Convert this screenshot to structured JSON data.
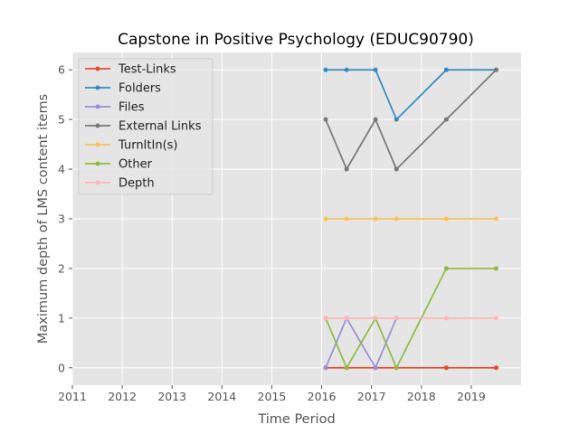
{
  "chart_data": {
    "type": "line",
    "title": "Capstone in Positive Psychology (EDUC90790)",
    "xlabel": "Time Period",
    "ylabel": "Maximum depth of LMS content items",
    "xlim": [
      2011,
      2020
    ],
    "ylim": [
      -0.35,
      6.35
    ],
    "xticks": [
      "2011",
      "2012",
      "2013",
      "2014",
      "2015",
      "2016",
      "2017",
      "2018",
      "2019"
    ],
    "yticks": [
      "0",
      "1",
      "2",
      "3",
      "4",
      "5",
      "6"
    ],
    "grid": true,
    "legend_position": "upper-left",
    "x": [
      2016.08,
      2016.5,
      2017.08,
      2017.5,
      2018.5,
      2019.5
    ],
    "series": [
      {
        "name": "Test-Links",
        "color": "#E24A33",
        "values": [
          0,
          0,
          0,
          0,
          0,
          0
        ]
      },
      {
        "name": "Folders",
        "color": "#348ABD",
        "values": [
          6,
          6,
          6,
          5,
          6,
          6
        ]
      },
      {
        "name": "Files",
        "color": "#988ED5",
        "values": [
          0,
          1,
          0,
          1,
          null,
          null
        ]
      },
      {
        "name": "External Links",
        "color": "#777777",
        "values": [
          5,
          4,
          5,
          4,
          5,
          6
        ]
      },
      {
        "name": "TurnItIn(s)",
        "color": "#FBC15E",
        "values": [
          3,
          3,
          3,
          3,
          3,
          3
        ]
      },
      {
        "name": "Other",
        "color": "#8EBA42",
        "values": [
          1,
          0,
          1,
          0,
          2,
          2
        ]
      },
      {
        "name": "Depth",
        "color": "#FFB5B8",
        "values": [
          1,
          1,
          1,
          1,
          1,
          1
        ]
      }
    ]
  }
}
